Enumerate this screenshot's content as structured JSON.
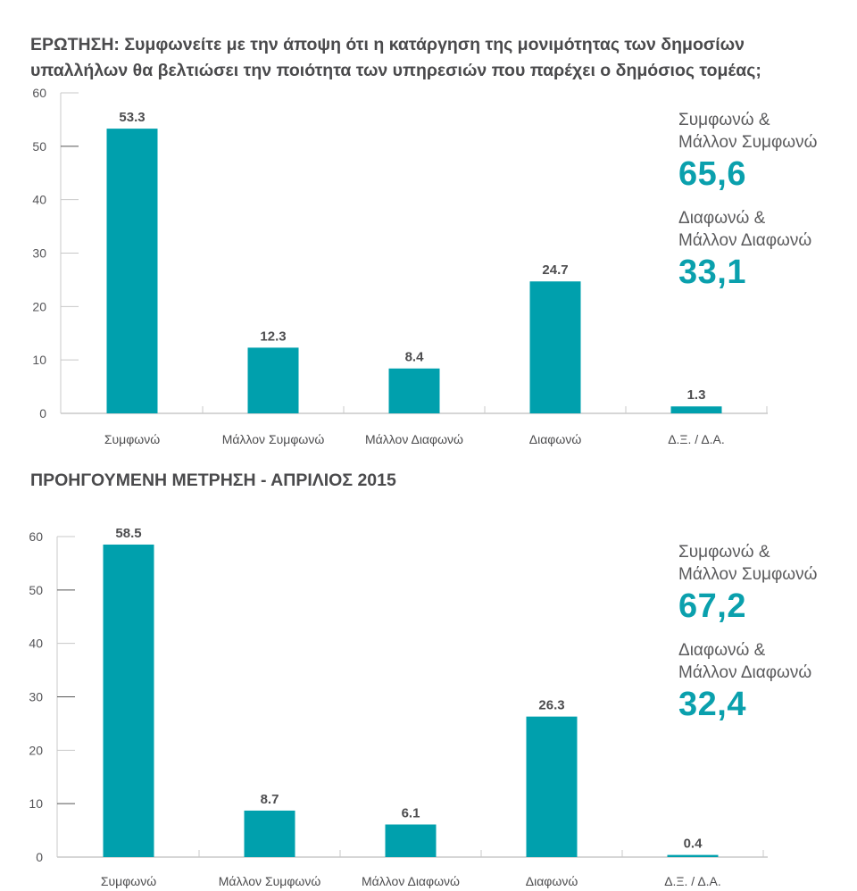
{
  "question_title": "ΕΡΩΤΗΣΗ: Συμφωνείτε με την άποψη ότι η κατάργηση της μονιμότητας των δημοσίων υπαλλήλων θα βελτιώσει την ποιότητα των υπηρεσιών που παρέχει ο δημόσιος τομέας;",
  "previous_title": "ΠΡΟΗΓΟΥΜΕΝΗ ΜΕΤΡΗΣΗ - ΑΠΡΙΛΙΟΣ 2015",
  "colors": {
    "bar": "#00a0ad",
    "summary_value": "#0aa0ad",
    "axis": "#c8c8c8",
    "text": "#4d4d4f"
  },
  "summaries": [
    {
      "agree_label_1": "Συμφωνώ &",
      "agree_label_2": "Μάλλον Συμφωνώ",
      "agree_value": "65,6",
      "disagree_label_1": "Διαφωνώ &",
      "disagree_label_2": "Μάλλον Διαφωνώ",
      "disagree_value": "33,1"
    },
    {
      "agree_label_1": "Συμφωνώ &",
      "agree_label_2": "Μάλλον Συμφωνώ",
      "agree_value": "67,2",
      "disagree_label_1": "Διαφωνώ &",
      "disagree_label_2": "Μάλλον Διαφωνώ",
      "disagree_value": "32,4"
    }
  ],
  "chart_data": [
    {
      "type": "bar",
      "title": "ΕΡΩΤΗΣΗ: Συμφωνείτε με την άποψη ότι η κατάργηση της μονιμότητας των δημοσίων υπαλλήλων θα βελτιώσει την ποιότητα των υπηρεσιών που παρέχει ο δημόσιος τομέας;",
      "categories": [
        "Συμφωνώ",
        "Μάλλον Συμφωνώ",
        "Μάλλον Διαφωνώ",
        "Διαφωνώ",
        "Δ.Ξ. / Δ.Α."
      ],
      "values": [
        53.3,
        12.3,
        8.4,
        24.7,
        1.3
      ],
      "value_labels": [
        "53.3",
        "12.3",
        "8.4",
        "24.7",
        "1.3"
      ],
      "yticks": [
        0,
        10,
        20,
        30,
        40,
        50,
        60
      ],
      "ylim": [
        0,
        60
      ],
      "xlabel": "",
      "ylabel": "",
      "grid": false,
      "legend": "none"
    },
    {
      "type": "bar",
      "title": "ΠΡΟΗΓΟΥΜΕΝΗ ΜΕΤΡΗΣΗ - ΑΠΡΙΛΙΟΣ 2015",
      "categories": [
        "Συμφωνώ",
        "Μάλλον Συμφωνώ",
        "Μάλλον Διαφωνώ",
        "Διαφωνώ",
        "Δ.Ξ. / Δ.Α."
      ],
      "values": [
        58.5,
        8.7,
        6.1,
        26.3,
        0.4
      ],
      "value_labels": [
        "58.5",
        "8.7",
        "6.1",
        "26.3",
        "0.4"
      ],
      "yticks": [
        0,
        10,
        20,
        30,
        40,
        50,
        60
      ],
      "ylim": [
        0,
        60
      ],
      "xlabel": "",
      "ylabel": "",
      "grid": false,
      "legend": "none"
    }
  ]
}
